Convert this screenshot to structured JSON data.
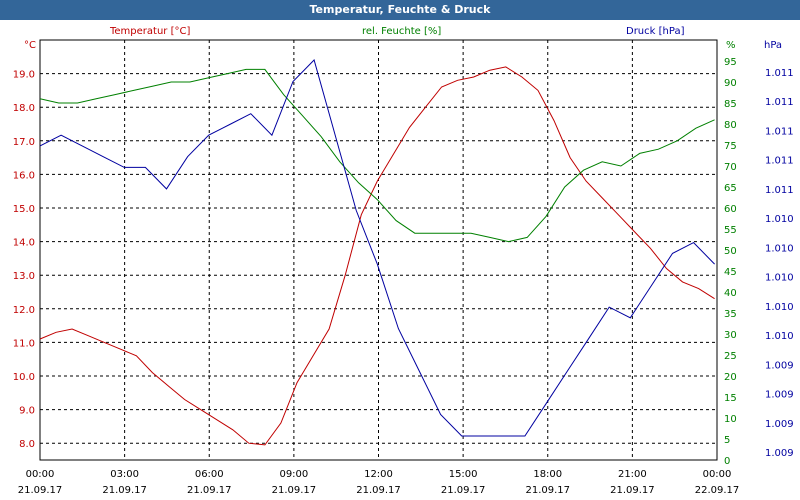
{
  "chart_data": {
    "type": "line",
    "title": "Temperatur, Feuchte & Druck",
    "series_labels": {
      "temperature": "Temperatur [°C]",
      "humidity": "rel. Feuchte [%]",
      "pressure": "Druck [hPa]"
    },
    "axes": {
      "left": {
        "unit": "°C",
        "ticks": [
          "8.0",
          "9.0",
          "10.0",
          "11.0",
          "12.0",
          "13.0",
          "14.0",
          "15.0",
          "16.0",
          "17.0",
          "18.0",
          "19.0"
        ],
        "range": [
          7.5,
          20.0
        ]
      },
      "mid": {
        "unit": "%",
        "ticks": [
          "0",
          "5",
          "10",
          "15",
          "20",
          "25",
          "30",
          "35",
          "40",
          "45",
          "50",
          "55",
          "60",
          "65",
          "70",
          "75",
          "80",
          "85",
          "90",
          "95"
        ],
        "range": [
          0,
          100
        ]
      },
      "right": {
        "unit": "hPa",
        "ticks": [
          "1.009",
          "1.009",
          "1.009",
          "1.009",
          "1.010",
          "1.010",
          "1.010",
          "1.010",
          "1.010",
          "1.011",
          "1.011",
          "1.011",
          "1.011",
          "1.011"
        ]
      },
      "x": {
        "ticks": [
          {
            "time": "00:00",
            "date": "21.09.17"
          },
          {
            "time": "03:00",
            "date": "21.09.17"
          },
          {
            "time": "06:00",
            "date": "21.09.17"
          },
          {
            "time": "09:00",
            "date": "21.09.17"
          },
          {
            "time": "12:00",
            "date": "21.09.17"
          },
          {
            "time": "15:00",
            "date": "21.09.17"
          },
          {
            "time": "18:00",
            "date": "21.09.17"
          },
          {
            "time": "21:00",
            "date": "21.09.17"
          },
          {
            "time": "00:00",
            "date": "22.09.17"
          }
        ]
      }
    },
    "grid": true,
    "x_hours": [
      0,
      0.5,
      1,
      1.5,
      2,
      2.5,
      3,
      3.5,
      4,
      4.5,
      5,
      5.5,
      6,
      6.5,
      7,
      7.5,
      8,
      8.5,
      9,
      9.5,
      10,
      10.5,
      11,
      11.5,
      12,
      12.5,
      13,
      13.5,
      14,
      14.5,
      15,
      15.5,
      16,
      16.5,
      17,
      17.5,
      18,
      18.5,
      19,
      19.5,
      20,
      20.5,
      21,
      21.5,
      22,
      22.5,
      23,
      23.5,
      24
    ],
    "series": [
      {
        "key": "temperature",
        "color": "#c00000",
        "values": [
          11.1,
          11.3,
          11.4,
          11.2,
          11.0,
          10.8,
          10.6,
          10.1,
          9.7,
          9.3,
          9.0,
          8.7,
          8.4,
          8.0,
          7.95,
          8.6,
          9.8,
          10.6,
          11.4,
          13.0,
          14.8,
          15.8,
          16.6,
          17.4,
          18.0,
          18.6,
          18.8,
          18.9,
          19.1,
          19.2,
          18.9,
          18.5,
          17.6,
          16.5,
          15.8,
          15.3,
          14.8,
          14.3,
          13.8,
          13.2,
          12.8,
          12.6,
          12.3
        ]
      },
      {
        "key": "humidity",
        "color": "#008000",
        "values": [
          86,
          85,
          85,
          86,
          87,
          88,
          89,
          90,
          90,
          91,
          92,
          93,
          93,
          87,
          82,
          77,
          71,
          66,
          62,
          57,
          54,
          54,
          54,
          54,
          53,
          52,
          53,
          58,
          65,
          69,
          71,
          70,
          73,
          74,
          76,
          79,
          81
        ]
      },
      {
        "key": "pressure",
        "color": "#0000a0",
        "values": [
          1.011,
          1.0111,
          1.011,
          1.0109,
          1.0108,
          1.0108,
          1.0106,
          1.0109,
          1.0111,
          1.0112,
          1.0113,
          1.0111,
          1.0116,
          1.0118,
          1.0111,
          1.0104,
          1.0099,
          1.0093,
          1.0089,
          1.0085,
          1.0083,
          1.0083,
          1.0083,
          1.0083,
          1.0086,
          1.0089,
          1.0092,
          1.0095,
          1.0094,
          1.0097,
          1.01,
          1.0101,
          1.0099
        ]
      }
    ]
  }
}
